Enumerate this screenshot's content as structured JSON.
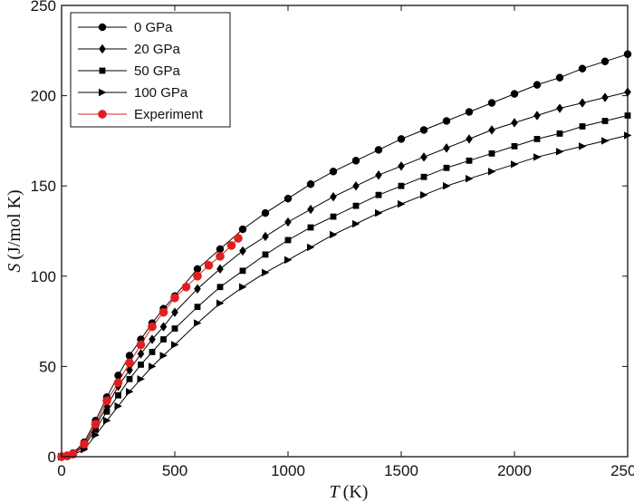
{
  "chart_data": {
    "type": "line",
    "title": "",
    "xlabel_symbol": "T",
    "xlabel_unit": "(K)",
    "ylabel_symbol": "S",
    "ylabel_unit": "(J/mol K)",
    "xlim": [
      0,
      2500
    ],
    "ylim": [
      0,
      250
    ],
    "xticks": [
      0,
      500,
      1000,
      1500,
      2000,
      2500
    ],
    "yticks": [
      0,
      50,
      100,
      150,
      200,
      250
    ],
    "grid": false,
    "legend_position": "top-left",
    "series": [
      {
        "name": "0 GPa",
        "marker": "circle",
        "color": "#000000",
        "x": [
          0,
          25,
          50,
          100,
          150,
          200,
          250,
          300,
          350,
          400,
          450,
          500,
          600,
          700,
          800,
          900,
          1000,
          1100,
          1200,
          1300,
          1400,
          1500,
          1600,
          1700,
          1800,
          1900,
          2000,
          2100,
          2200,
          2300,
          2400,
          2500
        ],
        "y": [
          0,
          0.5,
          2,
          8,
          20,
          33,
          45,
          56,
          65,
          74,
          82,
          89,
          104,
          115,
          126,
          135,
          143,
          151,
          158,
          164,
          170,
          176,
          181,
          186,
          191,
          196,
          201,
          206,
          210,
          215,
          219,
          223
        ]
      },
      {
        "name": "20 GPa",
        "marker": "diamond",
        "color": "#000000",
        "x": [
          0,
          25,
          50,
          100,
          150,
          200,
          250,
          300,
          350,
          400,
          450,
          500,
          600,
          700,
          800,
          900,
          1000,
          1100,
          1200,
          1300,
          1400,
          1500,
          1600,
          1700,
          1800,
          1900,
          2000,
          2100,
          2200,
          2300,
          2400,
          2500
        ],
        "y": [
          0,
          0.4,
          1.5,
          7,
          17,
          28,
          39,
          48,
          57,
          65,
          72,
          80,
          93,
          104,
          114,
          122,
          130,
          137,
          144,
          150,
          156,
          161,
          166,
          171,
          176,
          181,
          185,
          189,
          193,
          196,
          199,
          202
        ]
      },
      {
        "name": "50 GPa",
        "marker": "square",
        "color": "#000000",
        "x": [
          0,
          25,
          50,
          100,
          150,
          200,
          250,
          300,
          350,
          400,
          450,
          500,
          600,
          700,
          800,
          900,
          1000,
          1100,
          1200,
          1300,
          1400,
          1500,
          1600,
          1700,
          1800,
          1900,
          2000,
          2100,
          2200,
          2300,
          2400,
          2500
        ],
        "y": [
          0,
          0.3,
          1.2,
          6,
          15,
          25,
          34,
          43,
          51,
          58,
          65,
          71,
          83,
          94,
          103,
          112,
          120,
          127,
          133,
          139,
          145,
          150,
          155,
          160,
          164,
          168,
          172,
          176,
          179,
          183,
          186,
          189
        ]
      },
      {
        "name": "100 GPa",
        "marker": "triangle-right",
        "color": "#000000",
        "x": [
          0,
          25,
          50,
          100,
          150,
          200,
          250,
          300,
          350,
          400,
          450,
          500,
          600,
          700,
          800,
          900,
          1000,
          1100,
          1200,
          1300,
          1400,
          1500,
          1600,
          1700,
          1800,
          1900,
          2000,
          2100,
          2200,
          2300,
          2400,
          2500
        ],
        "y": [
          0,
          0.2,
          1,
          4,
          12,
          20,
          28,
          36,
          43,
          50,
          56,
          62,
          74,
          85,
          94,
          102,
          109,
          116,
          123,
          129,
          135,
          140,
          145,
          150,
          154,
          158,
          162,
          166,
          169,
          172,
          175,
          178
        ]
      },
      {
        "name": "Experiment",
        "marker": "circle",
        "color": "#e02020",
        "x": [
          0,
          25,
          50,
          100,
          150,
          200,
          250,
          300,
          350,
          400,
          450,
          500,
          550,
          600,
          650,
          700,
          750,
          780
        ],
        "y": [
          0,
          0.5,
          1.5,
          7,
          18,
          31,
          41,
          52,
          62,
          72,
          80,
          88,
          94,
          100,
          106,
          111,
          117,
          121
        ]
      }
    ]
  }
}
